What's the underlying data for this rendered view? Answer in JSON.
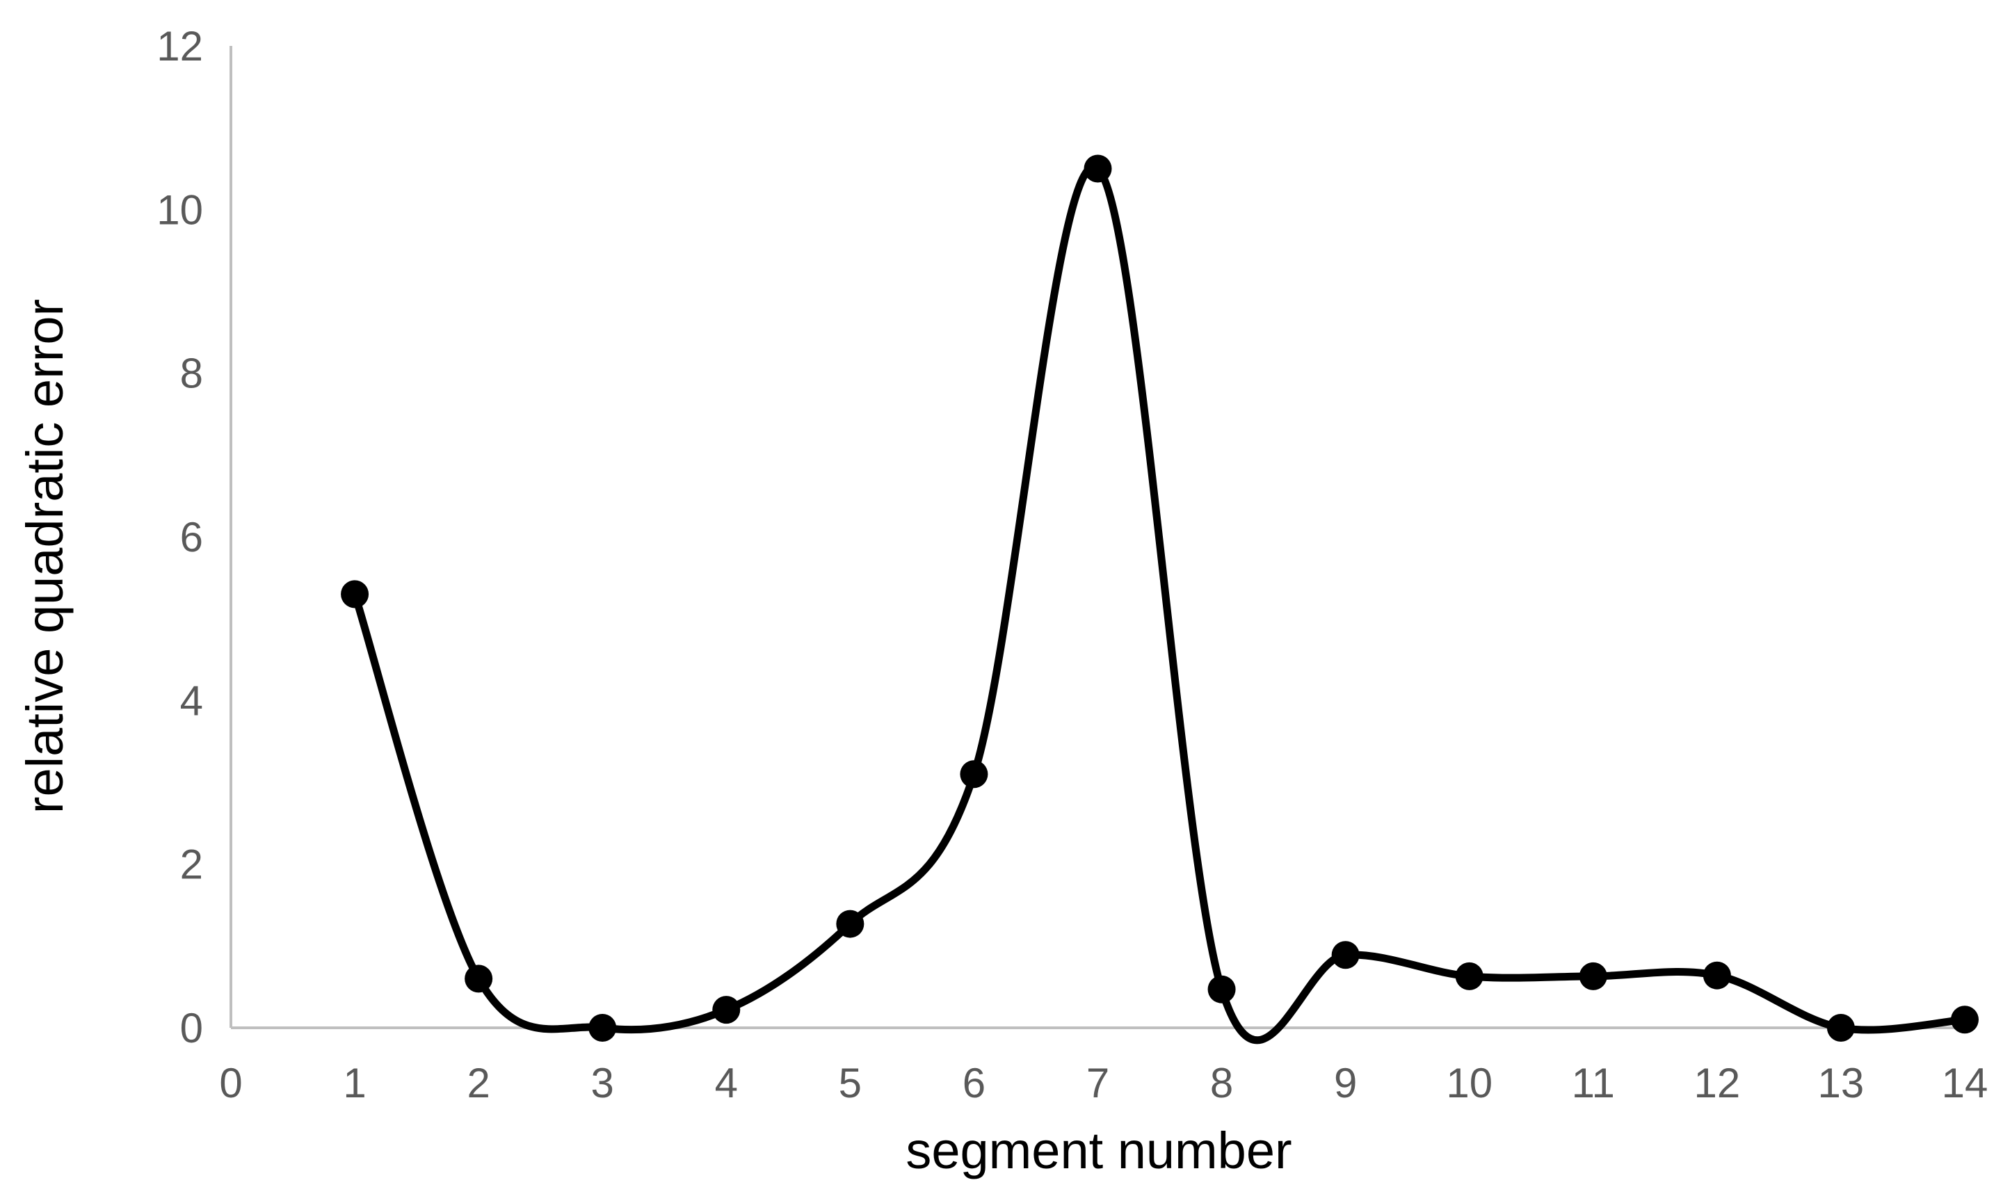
{
  "chart_data": {
    "type": "line",
    "x_label": "segment number",
    "y_label": "relative quadratic error",
    "x": [
      1,
      2,
      3,
      4,
      5,
      6,
      7,
      8,
      9,
      10,
      11,
      12,
      13,
      14
    ],
    "series": [
      {
        "color": "#000000",
        "values": [
          5.3,
          0.6,
          0,
          0.22,
          1.27,
          3.1,
          10.5,
          0.47,
          0.89,
          0.63,
          0.63,
          0.64,
          0,
          0.1
        ]
      }
    ],
    "xlim": [
      0,
      14
    ],
    "xticks": [
      0,
      1,
      2,
      3,
      4,
      5,
      6,
      7,
      8,
      9,
      10,
      11,
      12,
      13,
      14
    ],
    "ylim": [
      0,
      12
    ],
    "yticks": [
      0,
      2,
      4,
      6,
      8,
      10,
      12
    ],
    "smooth": true,
    "markers": true,
    "grid": false
  }
}
